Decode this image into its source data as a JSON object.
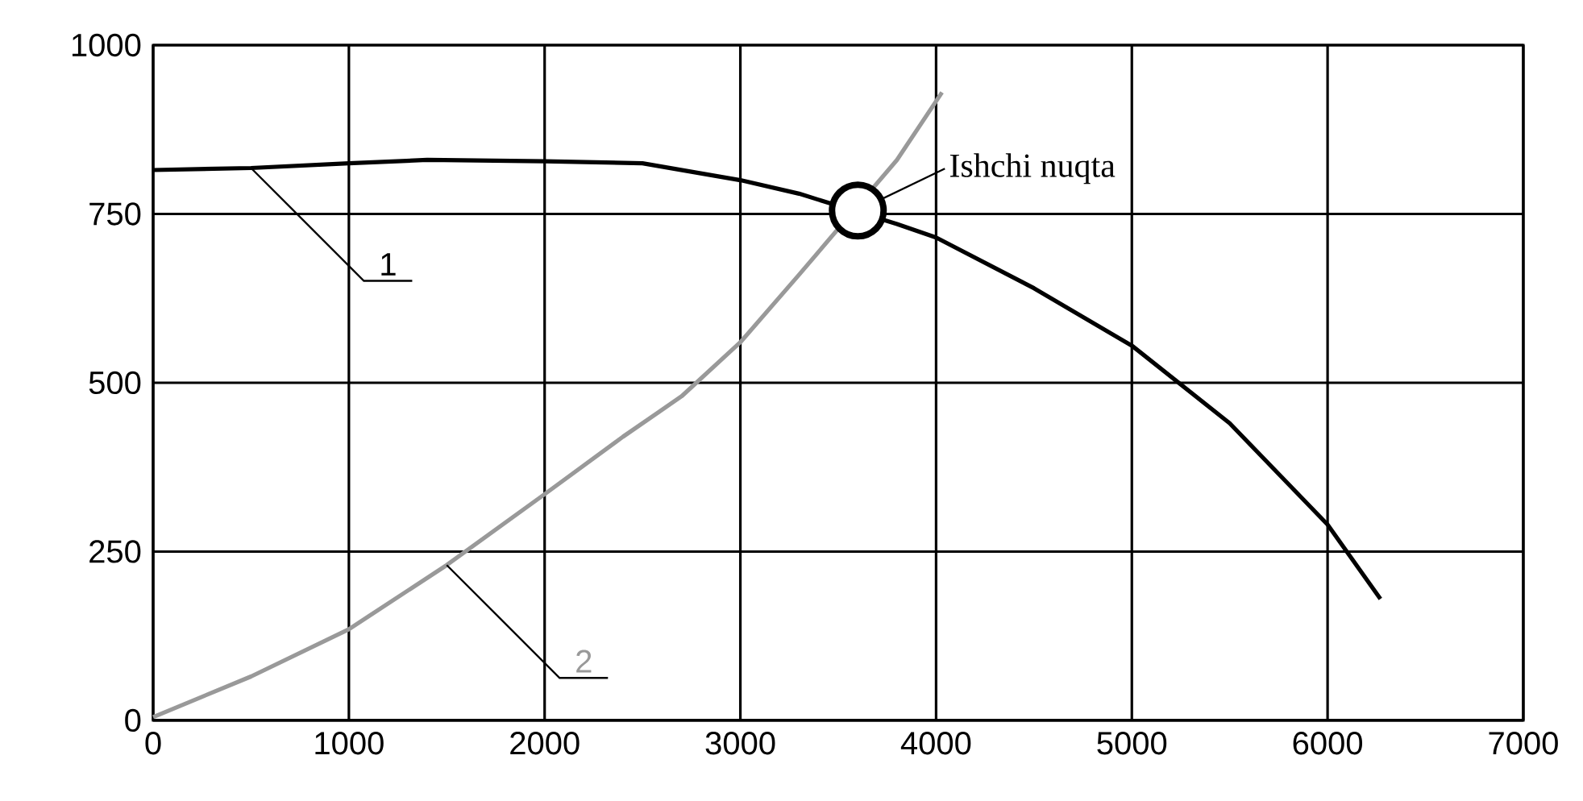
{
  "chart_data": {
    "type": "line",
    "series": [
      {
        "name": "1",
        "color": "#000000",
        "x": [
          0,
          500,
          1000,
          1400,
          2000,
          2500,
          3000,
          3300,
          3800,
          4000,
          4500,
          5000,
          5500,
          6000,
          6270
        ],
        "values": [
          815,
          818,
          825,
          830,
          828,
          825,
          800,
          780,
          735,
          715,
          640,
          555,
          440,
          290,
          180
        ]
      },
      {
        "name": "2",
        "color": "#999999",
        "x": [
          0,
          500,
          1000,
          1500,
          2000,
          2400,
          2700,
          3000,
          3300,
          3800,
          4030
        ],
        "values": [
          5,
          65,
          135,
          230,
          335,
          420,
          480,
          560,
          660,
          830,
          930
        ]
      }
    ],
    "xlim": [
      0,
      7000
    ],
    "xticks": [
      0,
      1000,
      2000,
      3000,
      4000,
      5000,
      6000,
      7000
    ],
    "ylim": [
      0,
      1000
    ],
    "yticks": [
      0,
      250,
      500,
      750,
      1000
    ],
    "grid": true,
    "legend": false,
    "marker": "none",
    "line_style": "solid",
    "annotations": [
      {
        "text": "Ishchi nuqta",
        "x": 3600,
        "y": 755
      }
    ]
  }
}
